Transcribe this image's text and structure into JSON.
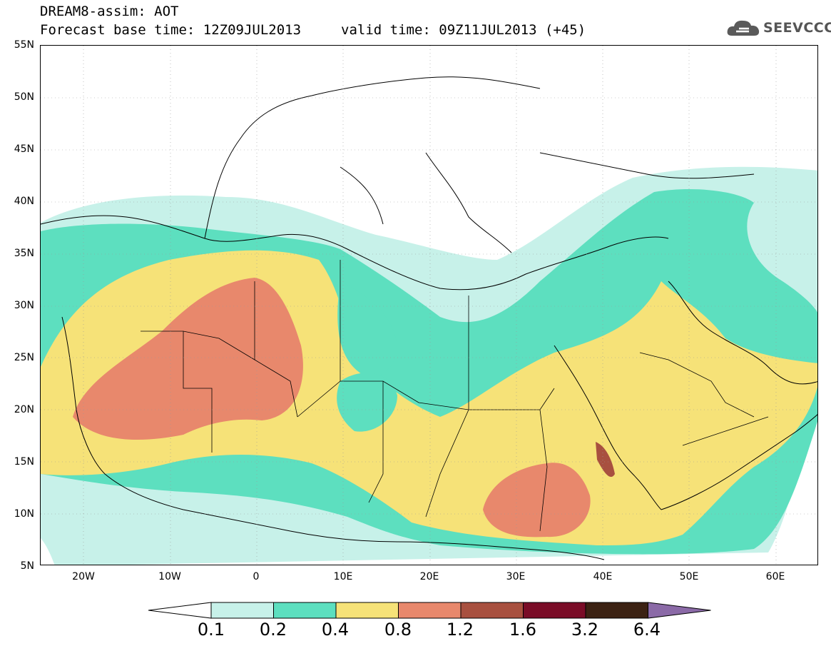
{
  "title": {
    "line1": "DREAM8-assim: AOT",
    "line2_left": "Forecast base time: 12Z09JUL2013",
    "line2_right": "valid time: 09Z11JUL2013 (+45)"
  },
  "logo": {
    "text": "SEEVCCC",
    "icon": "cloud-icon"
  },
  "map": {
    "lat_labels": [
      "55N",
      "50N",
      "45N",
      "40N",
      "35N",
      "30N",
      "25N",
      "20N",
      "15N",
      "10N",
      "5N"
    ],
    "lon_labels": [
      "20W",
      "10W",
      "0",
      "10E",
      "20E",
      "30E",
      "40E",
      "50E",
      "60E"
    ],
    "lon_range": [
      "25W",
      "65E"
    ],
    "lat_range": [
      "5N",
      "55N"
    ]
  },
  "colorbar": {
    "labels": [
      "0.1",
      "0.2",
      "0.4",
      "0.8",
      "1.2",
      "1.6",
      "3.2",
      "6.4"
    ],
    "colors": [
      "#c7f1e9",
      "#5ddfbf",
      "#f6e278",
      "#e8886c",
      "#a8503f",
      "#7a0c27",
      "#3c2213",
      "#8b6aa7"
    ],
    "under_color": "#ffffff"
  }
}
